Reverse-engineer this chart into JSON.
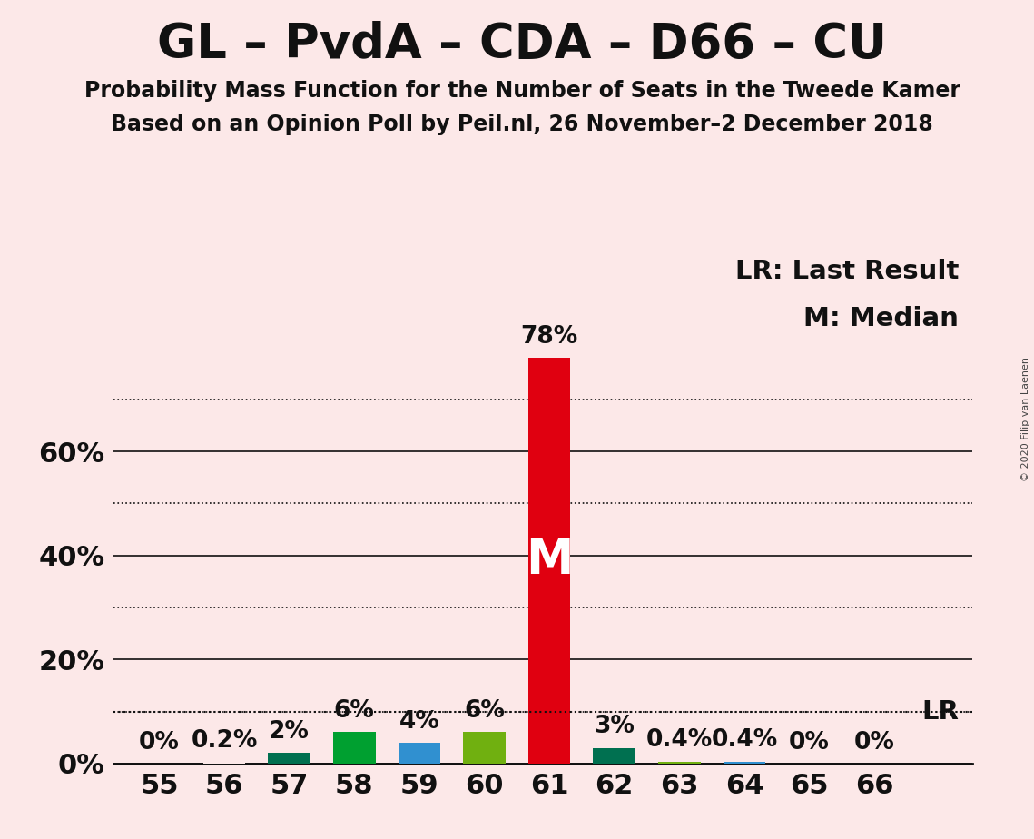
{
  "title": "GL – PvdA – CDA – D66 – CU",
  "subtitle1": "Probability Mass Function for the Number of Seats in the Tweede Kamer",
  "subtitle2": "Based on an Opinion Poll by Peil.nl, 26 November–2 December 2018",
  "copyright": "© 2020 Filip van Laenen",
  "seats": [
    55,
    56,
    57,
    58,
    59,
    60,
    61,
    62,
    63,
    64,
    65,
    66
  ],
  "values": [
    0.0,
    0.2,
    2.0,
    6.0,
    4.0,
    6.0,
    78.0,
    3.0,
    0.4,
    0.4,
    0.0,
    0.0
  ],
  "bar_colors": [
    "#fce8e8",
    "#fce8e8",
    "#007050",
    "#00a030",
    "#3090d0",
    "#70b010",
    "#e00010",
    "#007050",
    "#70b010",
    "#3090d0",
    "#fce8e8",
    "#fce8e8"
  ],
  "median_seat": 61,
  "lr_value": 10.0,
  "background_color": "#fce8e8",
  "ylim": [
    0,
    100
  ],
  "solid_yticks": [
    0,
    20,
    40,
    60
  ],
  "dotted_yticks": [
    10,
    30,
    50,
    70
  ],
  "ytick_labels_positions": [
    0,
    20,
    40,
    60
  ],
  "ytick_labels_text": [
    "0%",
    "20%",
    "40%",
    "60%"
  ],
  "bar_labels": [
    "0%",
    "0.2%",
    "2%",
    "6%",
    "4%",
    "6%",
    "78%",
    "3%",
    "0.4%",
    "0.4%",
    "0%",
    "0%"
  ],
  "title_fontsize": 38,
  "subtitle_fontsize": 17,
  "axis_tick_fontsize": 22,
  "bar_label_fontsize": 19,
  "legend_fontsize": 21,
  "median_label_fontsize": 38,
  "lr_label_fontsize": 21
}
